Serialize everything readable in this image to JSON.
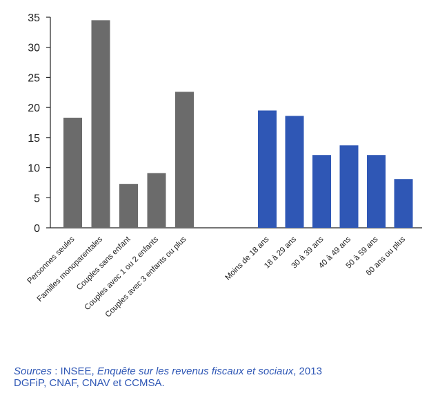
{
  "chart_data": {
    "type": "bar",
    "ylim": [
      0,
      35
    ],
    "yticks": [
      "0",
      "5",
      "10",
      "15",
      "20",
      "25",
      "30",
      "35"
    ],
    "grid": false,
    "groups": [
      {
        "color": "#6b6b6b",
        "categories": [
          "Personnes seules",
          "Familles monoparentales",
          "Couples sans enfant",
          "Couples avec 1 ou 2 enfants",
          "Couples avec 3 enfants ou plus"
        ],
        "values": [
          18.3,
          34.5,
          7.3,
          9.1,
          22.6
        ]
      },
      {
        "color": "#2f57b5",
        "categories": [
          "Moins de 18 ans",
          "18 à 29 ans",
          "30 à 39 ans",
          "40 à 49 ans",
          "50 à 59 ans",
          "60 ans ou plus"
        ],
        "values": [
          19.5,
          18.6,
          12.1,
          13.7,
          12.1,
          8.1
        ]
      }
    ]
  },
  "sources": {
    "label": "Sources",
    "sep": " : INSEE, ",
    "survey": "Enquête sur les revenus fiscaux et sociaux",
    "year": ", 2013",
    "line2": "DGFiP, CNAF, CNAV et CCMSA."
  }
}
